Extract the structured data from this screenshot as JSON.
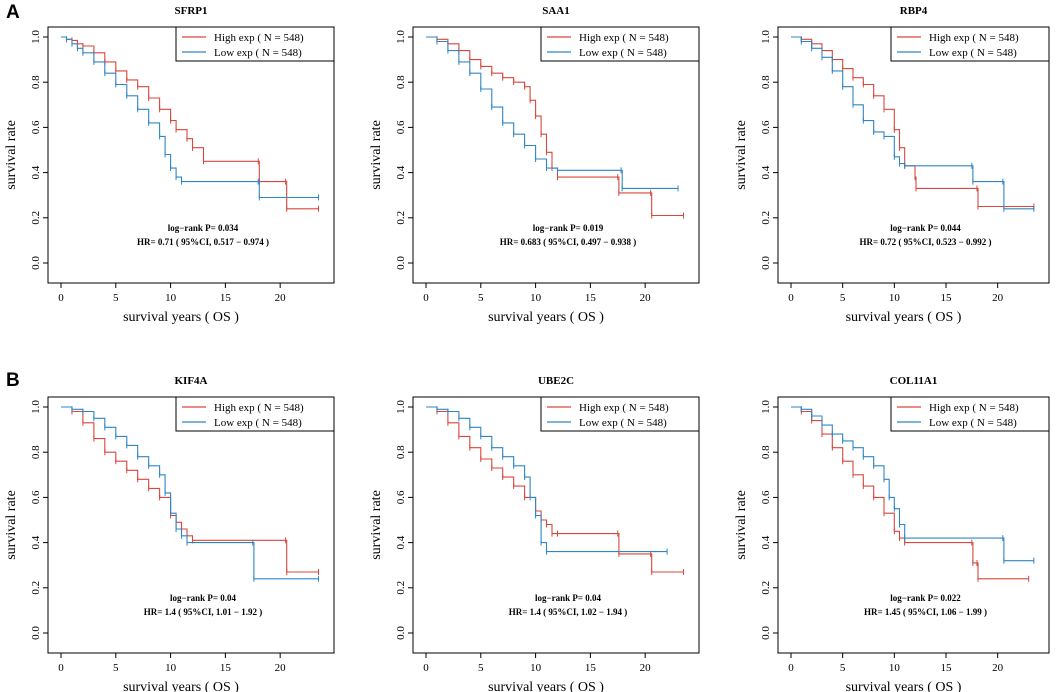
{
  "panel_labels": [
    "A",
    "B"
  ],
  "colors": {
    "high": "#d9473c",
    "low": "#2f86c6",
    "axis": "#000000"
  },
  "chart_data": [
    {
      "type": "line",
      "title": "SFRP1",
      "xlabel": "survival years ( OS  )",
      "ylabel": "survival rate",
      "xlim": [
        0,
        24
      ],
      "ylim": [
        0,
        1
      ],
      "xticks": [
        0,
        5,
        10,
        15,
        20
      ],
      "yticks": [
        0.0,
        0.2,
        0.4,
        0.6,
        0.8,
        1.0
      ],
      "legend_position": "top-right",
      "series": [
        {
          "name": "High exp ( N = 548)",
          "color": "#d9473c",
          "x": [
            0,
            0.5,
            1,
            1.5,
            2,
            3,
            4,
            5,
            6,
            7,
            8,
            9,
            10,
            10.5,
            11.5,
            12,
            13,
            18,
            18.1,
            20.5,
            20.6,
            23.5
          ],
          "y": [
            1,
            0.99,
            0.985,
            0.97,
            0.96,
            0.93,
            0.89,
            0.85,
            0.81,
            0.78,
            0.73,
            0.68,
            0.63,
            0.59,
            0.55,
            0.51,
            0.45,
            0.45,
            0.36,
            0.36,
            0.24,
            0.24
          ]
        },
        {
          "name": "Low exp ( N = 548)",
          "color": "#2f86c6",
          "x": [
            0,
            0.5,
            1,
            1.5,
            2,
            3,
            4,
            5,
            6,
            7,
            8,
            9,
            9.5,
            10,
            10.5,
            11,
            18,
            18.1,
            23.5
          ],
          "y": [
            1,
            0.99,
            0.97,
            0.95,
            0.93,
            0.89,
            0.84,
            0.79,
            0.74,
            0.68,
            0.62,
            0.56,
            0.48,
            0.42,
            0.38,
            0.36,
            0.36,
            0.29,
            0.29
          ]
        }
      ],
      "annotation": [
        "log−rank P= 0.034",
        "HR= 0.71 ( 95%CI, 0.517 − 0.974 )"
      ]
    },
    {
      "type": "line",
      "title": "SAA1",
      "xlabel": "survival years ( OS  )",
      "ylabel": "survival rate",
      "xlim": [
        0,
        24
      ],
      "ylim": [
        0,
        1
      ],
      "xticks": [
        0,
        5,
        10,
        15,
        20
      ],
      "yticks": [
        0.0,
        0.2,
        0.4,
        0.6,
        0.8,
        1.0
      ],
      "legend_position": "top-right",
      "series": [
        {
          "name": "High exp ( N = 548)",
          "color": "#d9473c",
          "x": [
            0,
            1,
            2,
            3,
            4,
            5,
            6,
            7,
            8,
            9,
            9.5,
            10,
            10.5,
            11,
            11.5,
            12,
            17.5,
            17.6,
            20.5,
            20.6,
            23.5
          ],
          "y": [
            1,
            0.99,
            0.97,
            0.94,
            0.9,
            0.87,
            0.84,
            0.82,
            0.8,
            0.78,
            0.72,
            0.65,
            0.57,
            0.49,
            0.42,
            0.38,
            0.38,
            0.31,
            0.31,
            0.21,
            0.21
          ]
        },
        {
          "name": "Low exp ( N = 548)",
          "color": "#2f86c6",
          "x": [
            0,
            1,
            2,
            3,
            4,
            5,
            6,
            7,
            8,
            9,
            10,
            11,
            12,
            17.8,
            17.9,
            23
          ],
          "y": [
            1,
            0.98,
            0.94,
            0.89,
            0.84,
            0.77,
            0.69,
            0.62,
            0.57,
            0.52,
            0.46,
            0.42,
            0.41,
            0.41,
            0.33,
            0.33
          ]
        }
      ],
      "annotation": [
        "log−rank P= 0.019",
        "HR= 0.683 ( 95%CI, 0.497 − 0.938 )"
      ]
    },
    {
      "type": "line",
      "title": "RBP4",
      "xlabel": "survival years ( OS  )",
      "ylabel": "survival rate",
      "xlim": [
        0,
        24
      ],
      "ylim": [
        0,
        1
      ],
      "xticks": [
        0,
        5,
        10,
        15,
        20
      ],
      "yticks": [
        0.0,
        0.2,
        0.4,
        0.6,
        0.8,
        1.0
      ],
      "legend_position": "top-right",
      "series": [
        {
          "name": "High exp ( N = 548)",
          "color": "#d9473c",
          "x": [
            0,
            1,
            2,
            3,
            4,
            5,
            6,
            7,
            8,
            9,
            10,
            10.5,
            11,
            12,
            12.1,
            18,
            18.1,
            23.5
          ],
          "y": [
            1,
            0.99,
            0.97,
            0.94,
            0.9,
            0.86,
            0.82,
            0.79,
            0.74,
            0.68,
            0.59,
            0.51,
            0.43,
            0.38,
            0.33,
            0.33,
            0.25,
            0.25
          ]
        },
        {
          "name": "Low exp ( N = 548)",
          "color": "#2f86c6",
          "x": [
            0,
            1,
            2,
            3,
            4,
            5,
            6,
            7,
            8,
            9,
            10,
            10.5,
            11,
            17.5,
            17.6,
            20.5,
            20.6,
            23.5
          ],
          "y": [
            1,
            0.98,
            0.95,
            0.91,
            0.85,
            0.78,
            0.7,
            0.63,
            0.58,
            0.56,
            0.47,
            0.44,
            0.43,
            0.43,
            0.36,
            0.36,
            0.24,
            0.24
          ]
        }
      ],
      "annotation": [
        "log−rank P= 0.044",
        "HR= 0.72 ( 95%CI, 0.523 − 0.992 )"
      ]
    },
    {
      "type": "line",
      "title": "KIF4A",
      "xlabel": "survival years ( OS  )",
      "ylabel": "survival rate",
      "xlim": [
        0,
        24
      ],
      "ylim": [
        0,
        1
      ],
      "xticks": [
        0,
        5,
        10,
        15,
        20
      ],
      "yticks": [
        0.0,
        0.2,
        0.4,
        0.6,
        0.8,
        1.0
      ],
      "legend_position": "top-right",
      "series": [
        {
          "name": "High exp ( N = 548)",
          "color": "#d9473c",
          "x": [
            0,
            1,
            2,
            3,
            4,
            5,
            6,
            7,
            8,
            9,
            10,
            10.5,
            11,
            11.5,
            12,
            20.5,
            20.6,
            23.5
          ],
          "y": [
            1,
            0.98,
            0.93,
            0.86,
            0.8,
            0.76,
            0.72,
            0.68,
            0.64,
            0.6,
            0.52,
            0.49,
            0.46,
            0.43,
            0.41,
            0.41,
            0.27,
            0.27
          ]
        },
        {
          "name": "Low exp ( N = 548)",
          "color": "#2f86c6",
          "x": [
            0,
            1,
            2,
            3,
            4,
            5,
            6,
            7,
            8,
            9,
            9.5,
            10,
            10.5,
            11,
            11.5,
            17.5,
            17.6,
            23.5
          ],
          "y": [
            1,
            0.99,
            0.98,
            0.95,
            0.91,
            0.87,
            0.83,
            0.78,
            0.74,
            0.7,
            0.62,
            0.53,
            0.46,
            0.43,
            0.4,
            0.4,
            0.24,
            0.24
          ]
        }
      ],
      "annotation": [
        "log−rank P= 0.04",
        "HR= 1.4 ( 95%CI, 1.01 − 1.92 )"
      ]
    },
    {
      "type": "line",
      "title": "UBE2C",
      "xlabel": "survival years ( OS  )",
      "ylabel": "survival rate",
      "xlim": [
        0,
        24
      ],
      "ylim": [
        0,
        1
      ],
      "xticks": [
        0,
        5,
        10,
        15,
        20
      ],
      "yticks": [
        0.0,
        0.2,
        0.4,
        0.6,
        0.8,
        1.0
      ],
      "legend_position": "top-right",
      "series": [
        {
          "name": "High exp ( N = 548)",
          "color": "#d9473c",
          "x": [
            0,
            1,
            2,
            3,
            4,
            5,
            6,
            7,
            8,
            9,
            10,
            10.5,
            11,
            11.5,
            12,
            17.5,
            17.6,
            20.5,
            20.6,
            23.5
          ],
          "y": [
            1,
            0.98,
            0.93,
            0.87,
            0.82,
            0.77,
            0.73,
            0.69,
            0.65,
            0.6,
            0.54,
            0.5,
            0.48,
            0.44,
            0.44,
            0.44,
            0.35,
            0.35,
            0.27,
            0.27
          ]
        },
        {
          "name": "Low exp ( N = 548)",
          "color": "#2f86c6",
          "x": [
            0,
            1,
            2,
            3,
            4,
            5,
            6,
            7,
            8,
            9,
            9.5,
            10,
            10.5,
            11,
            22
          ],
          "y": [
            1,
            0.99,
            0.98,
            0.95,
            0.91,
            0.87,
            0.82,
            0.78,
            0.74,
            0.69,
            0.6,
            0.52,
            0.4,
            0.36,
            0.36
          ]
        }
      ],
      "annotation": [
        "log−rank P= 0.04",
        "HR= 1.4 ( 95%CI, 1.02 − 1.94 )"
      ]
    },
    {
      "type": "line",
      "title": "COL11A1",
      "xlabel": "survival years ( OS  )",
      "ylabel": "survival rate",
      "xlim": [
        0,
        24
      ],
      "ylim": [
        0,
        1
      ],
      "xticks": [
        0,
        5,
        10,
        15,
        20
      ],
      "yticks": [
        0.0,
        0.2,
        0.4,
        0.6,
        0.8,
        1.0
      ],
      "legend_position": "top-right",
      "series": [
        {
          "name": "High exp ( N = 548)",
          "color": "#d9473c",
          "x": [
            0,
            1,
            2,
            3,
            4,
            5,
            6,
            7,
            8,
            9,
            10,
            10.5,
            11,
            17.5,
            17.6,
            18,
            18.1,
            23
          ],
          "y": [
            1,
            0.98,
            0.94,
            0.88,
            0.82,
            0.76,
            0.7,
            0.65,
            0.6,
            0.53,
            0.45,
            0.42,
            0.4,
            0.4,
            0.31,
            0.31,
            0.24,
            0.24
          ]
        },
        {
          "name": "Low exp ( N = 548)",
          "color": "#2f86c6",
          "x": [
            0,
            1,
            2,
            3,
            4,
            5,
            6,
            7,
            8,
            9,
            9.5,
            10,
            10.5,
            11,
            20.5,
            20.6,
            23.5
          ],
          "y": [
            1,
            0.99,
            0.96,
            0.92,
            0.88,
            0.85,
            0.82,
            0.78,
            0.74,
            0.68,
            0.6,
            0.55,
            0.48,
            0.42,
            0.42,
            0.32,
            0.32
          ]
        }
      ],
      "annotation": [
        "log−rank P= 0.022",
        "HR= 1.45 ( 95%CI, 1.06 − 1.99 )"
      ]
    }
  ]
}
